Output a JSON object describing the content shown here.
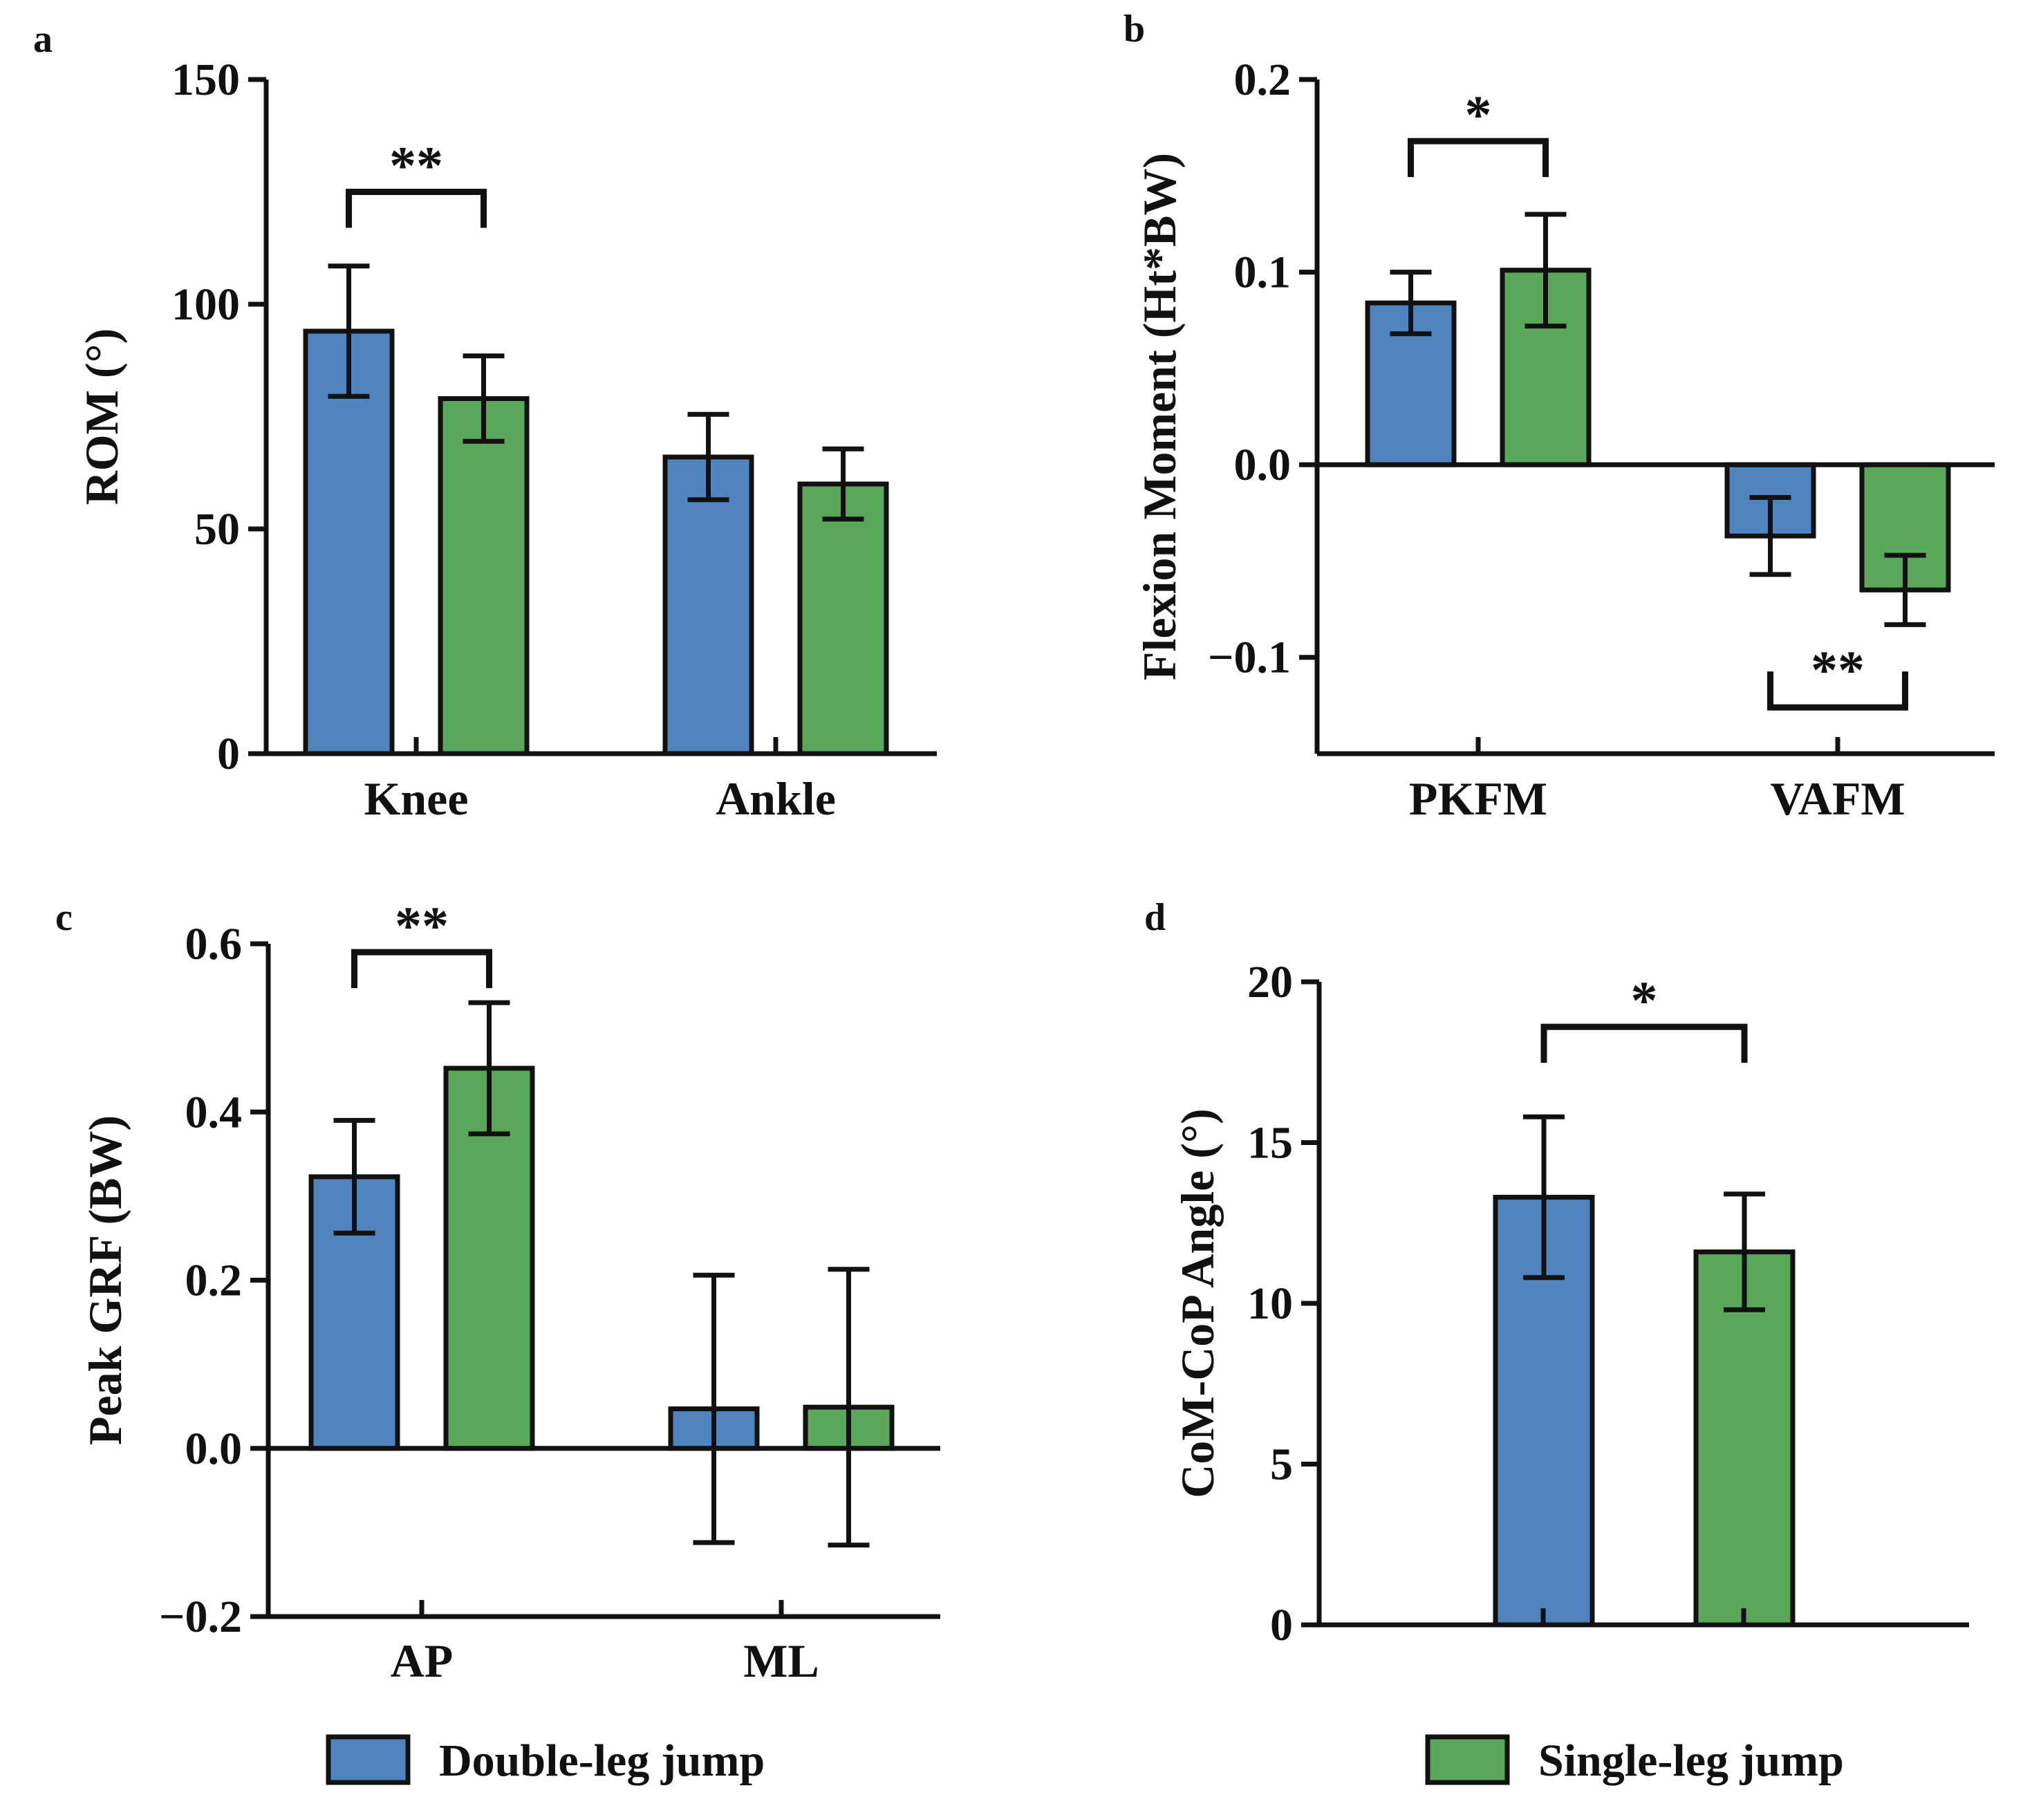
{
  "figure": {
    "legend": [
      {
        "label": "Double-leg jump",
        "color": "#4f84bf"
      },
      {
        "label": "Single-leg jump",
        "color": "#59a85a"
      }
    ]
  },
  "chart_data": [
    {
      "panel": "a",
      "type": "bar",
      "ylabel": "ROM (°)",
      "ylim": [
        0,
        150
      ],
      "yticks": [
        0,
        50,
        100,
        150
      ],
      "ytick_labels": [
        "0",
        "50",
        "100",
        "150"
      ],
      "categories": [
        "Knee",
        "Ankle"
      ],
      "series": [
        {
          "name": "Double-leg jump",
          "values": [
            94,
            66
          ],
          "errors": [
            14.5,
            9.5
          ]
        },
        {
          "name": "Single-leg jump",
          "values": [
            79,
            60
          ],
          "errors": [
            9.5,
            7.8
          ]
        }
      ],
      "significance": [
        {
          "category": 0,
          "label": "**",
          "position": "above",
          "value": 125
        }
      ]
    },
    {
      "panel": "b",
      "type": "bar",
      "ylabel": "Flexion Moment (Ht*BW)",
      "ylim": [
        -0.15,
        0.2
      ],
      "yticks": [
        -0.1,
        0.0,
        0.1,
        0.2
      ],
      "ytick_labels": [
        "−0.1",
        "0.0",
        "0.1",
        "0.2"
      ],
      "categories": [
        "PKFM",
        "VAFM"
      ],
      "series": [
        {
          "name": "Double-leg jump",
          "values": [
            0.084,
            -0.037
          ],
          "errors": [
            0.016,
            0.02
          ]
        },
        {
          "name": "Single-leg jump",
          "values": [
            0.101,
            -0.065
          ],
          "errors": [
            0.029,
            0.018
          ]
        }
      ],
      "significance": [
        {
          "category": 0,
          "label": "*",
          "position": "above",
          "value": 0.168
        },
        {
          "category": 1,
          "label": "**",
          "position": "below",
          "value": -0.126
        }
      ]
    },
    {
      "panel": "c",
      "type": "bar",
      "ylabel": "Peak GRF (BW)",
      "ylim": [
        -0.2,
        0.6
      ],
      "yticks": [
        -0.2,
        0.0,
        0.2,
        0.4,
        0.6
      ],
      "ytick_labels": [
        "−0.2",
        "0.0",
        "0.2",
        "0.4",
        "0.6"
      ],
      "categories": [
        "AP",
        "ML"
      ],
      "series": [
        {
          "name": "Double-leg jump",
          "values": [
            0.323,
            0.047
          ],
          "errors": [
            0.067,
            0.159
          ]
        },
        {
          "name": "Single-leg jump",
          "values": [
            0.452,
            0.049
          ],
          "errors": [
            0.078,
            0.164
          ]
        }
      ],
      "significance": [
        {
          "category": 0,
          "label": "**",
          "position": "above",
          "value": 0.59
        }
      ]
    },
    {
      "panel": "d",
      "type": "bar",
      "ylabel": "CoM-CoP Angle (°)",
      "ylim": [
        0,
        20
      ],
      "yticks": [
        0,
        5,
        10,
        15,
        20
      ],
      "ytick_labels": [
        "0",
        "5",
        "10",
        "15",
        "20"
      ],
      "categories": [
        ""
      ],
      "series": [
        {
          "name": "Double-leg jump",
          "values": [
            13.3
          ],
          "errors": [
            2.5
          ]
        },
        {
          "name": "Single-leg jump",
          "values": [
            11.6
          ],
          "errors": [
            1.8
          ]
        }
      ],
      "significance": [
        {
          "category": 0,
          "label": "*",
          "position": "above",
          "value": 18.6
        }
      ]
    }
  ]
}
